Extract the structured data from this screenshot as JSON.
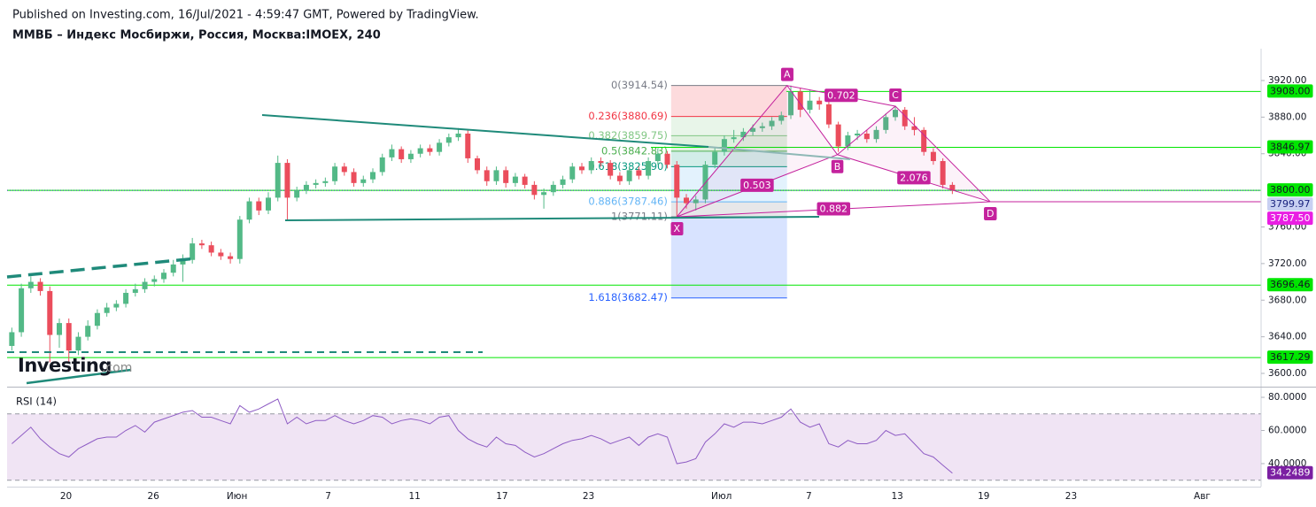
{
  "header": {
    "published": "Published on Investing.com, 16/Jul/2021 - 4:59:47 GMT, Powered by TradingView.",
    "symbol": "ММВБ – Индекс Мосбиржи, Россия, Москва:IMOEX, 240"
  },
  "logo": {
    "name": "Investing",
    "suffix": ".com"
  },
  "chart_data": [
    {
      "type": "candlestick",
      "up_color": "#53b987",
      "down_color": "#eb4d5c",
      "xlim": [
        -0.5,
        131.5
      ],
      "ylim": [
        3585.5,
        3954.8
      ],
      "yticks": [
        {
          "value": 3920,
          "label": "3920.00"
        },
        {
          "value": 3880,
          "label": "3880.00"
        },
        {
          "value": 3840,
          "label": "3840.00"
        },
        {
          "value": 3760,
          "label": "3760.00"
        },
        {
          "value": 3720,
          "label": "3720.00"
        },
        {
          "value": 3680,
          "label": "3680.00"
        },
        {
          "value": 3640,
          "label": "3640.00"
        },
        {
          "value": 3600,
          "label": "3600.00"
        }
      ],
      "xticks": [
        {
          "value": 5.7,
          "label": "20"
        },
        {
          "value": 14.9,
          "label": "26"
        },
        {
          "value": 23.7,
          "label": "Июн"
        },
        {
          "value": 33.3,
          "label": "7"
        },
        {
          "value": 42.4,
          "label": "11"
        },
        {
          "value": 51.6,
          "label": "17"
        },
        {
          "value": 60.7,
          "label": "23"
        },
        {
          "value": 74.7,
          "label": "Июл"
        },
        {
          "value": 83.9,
          "label": "7"
        },
        {
          "value": 93.2,
          "label": "13"
        },
        {
          "value": 102.3,
          "label": "19"
        },
        {
          "value": 111.5,
          "label": "23"
        },
        {
          "value": 125.3,
          "label": "Авг"
        }
      ],
      "open": [
        3630,
        3645,
        3693,
        3700,
        3690,
        3642,
        3655,
        3625,
        3640,
        3652,
        3666,
        3672,
        3676,
        3688,
        3692,
        3700,
        3703,
        3710,
        3719,
        3724,
        3742,
        3740,
        3732,
        3728,
        3725,
        3768,
        3788,
        3778,
        3792,
        3830,
        3792,
        3800,
        3806,
        3808,
        3810,
        3826,
        3820,
        3808,
        3812,
        3820,
        3836,
        3845,
        3834,
        3840,
        3846,
        3842,
        3852,
        3858,
        3862,
        3835,
        3822,
        3810,
        3822,
        3808,
        3815,
        3806,
        3795,
        3798,
        3806,
        3812,
        3826,
        3822,
        3832,
        3830,
        3816,
        3810,
        3822,
        3816,
        3832,
        3840,
        3828,
        3792,
        3786,
        3790,
        3828,
        3842,
        3856,
        3858,
        3864,
        3868,
        3870,
        3876,
        3882,
        3908,
        3888,
        3898,
        3894,
        3872,
        3848,
        3860,
        3862,
        3856,
        3866,
        3880,
        3888,
        3870,
        3866,
        3842,
        3832,
        3806
      ],
      "high": [
        3650,
        3698,
        3706,
        3704,
        3695,
        3660,
        3660,
        3645,
        3658,
        3670,
        3677,
        3680,
        3692,
        3698,
        3704,
        3707,
        3714,
        3724,
        3730,
        3748,
        3746,
        3744,
        3736,
        3732,
        3772,
        3792,
        3792,
        3798,
        3838,
        3834,
        3804,
        3810,
        3812,
        3814,
        3830,
        3830,
        3824,
        3816,
        3824,
        3840,
        3850,
        3848,
        3844,
        3850,
        3850,
        3856,
        3862,
        3868,
        3866,
        3838,
        3826,
        3826,
        3826,
        3819,
        3818,
        3810,
        3802,
        3810,
        3816,
        3830,
        3830,
        3836,
        3836,
        3833,
        3820,
        3826,
        3826,
        3836,
        3846,
        3843,
        3832,
        3796,
        3794,
        3832,
        3846,
        3860,
        3866,
        3868,
        3872,
        3874,
        3880,
        3886,
        3914.54,
        3912,
        3910,
        3902,
        3897,
        3875,
        3864,
        3866,
        3866,
        3870,
        3884,
        3892,
        3891,
        3880,
        3869,
        3846,
        3835,
        3809
      ],
      "low": [
        3625,
        3640,
        3688,
        3685,
        3612,
        3628,
        3612,
        3620,
        3636,
        3648,
        3662,
        3668,
        3672,
        3684,
        3688,
        3695,
        3699,
        3706,
        3700,
        3720,
        3736,
        3728,
        3724,
        3720,
        3720,
        3764,
        3773,
        3774,
        3788,
        3768,
        3788,
        3796,
        3802,
        3804,
        3806,
        3816,
        3804,
        3804,
        3808,
        3816,
        3832,
        3830,
        3830,
        3836,
        3838,
        3838,
        3848,
        3854,
        3830,
        3818,
        3805,
        3806,
        3803,
        3804,
        3802,
        3790,
        3780,
        3794,
        3802,
        3808,
        3818,
        3818,
        3826,
        3812,
        3806,
        3806,
        3812,
        3812,
        3828,
        3824,
        3771.11,
        3780,
        3778,
        3786,
        3824,
        3838,
        3852,
        3854,
        3860,
        3864,
        3866,
        3872,
        3878,
        3880,
        3884,
        3888,
        3868,
        3842,
        3844,
        3855,
        3852,
        3852,
        3862,
        3876,
        3866,
        3860,
        3838,
        3828,
        3802,
        3796
      ],
      "close": [
        3645,
        3693,
        3700,
        3690,
        3642,
        3655,
        3625,
        3640,
        3652,
        3666,
        3672,
        3676,
        3688,
        3692,
        3700,
        3703,
        3710,
        3719,
        3724,
        3742,
        3740,
        3732,
        3728,
        3725,
        3768,
        3788,
        3778,
        3792,
        3830,
        3792,
        3800,
        3806,
        3808,
        3810,
        3826,
        3820,
        3808,
        3812,
        3820,
        3836,
        3845,
        3834,
        3840,
        3846,
        3842,
        3852,
        3858,
        3862,
        3835,
        3822,
        3810,
        3822,
        3808,
        3815,
        3806,
        3795,
        3798,
        3806,
        3812,
        3826,
        3822,
        3832,
        3830,
        3816,
        3810,
        3822,
        3816,
        3832,
        3840,
        3828,
        3792,
        3786,
        3790,
        3828,
        3842,
        3856,
        3858,
        3864,
        3868,
        3870,
        3876,
        3882,
        3908,
        3888,
        3898,
        3894,
        3872,
        3848,
        3860,
        3862,
        3856,
        3866,
        3880,
        3888,
        3870,
        3866,
        3842,
        3832,
        3806,
        3799.97
      ],
      "level_color": "#00e600",
      "levels": [
        {
          "value": 3908,
          "label": "3908.00"
        },
        {
          "value": 3846.97,
          "label": "3846.97"
        },
        {
          "value": 3800,
          "label": "3800.00"
        },
        {
          "value": 3696.46,
          "label": "3696.46"
        },
        {
          "value": 3617.29,
          "label": "3617.29"
        }
      ],
      "last_color": "#2f3fb0",
      "fib": {
        "x": [
          69.4,
          81.6
        ],
        "levels": [
          {
            "value": 3914.54,
            "label": "0(3914.54)",
            "color": "#787b86"
          },
          {
            "value": 3880.69,
            "label": "0.236(3880.69)",
            "color": "#f23645"
          },
          {
            "value": 3859.75,
            "label": "0.382(3859.75)",
            "color": "#81c784"
          },
          {
            "value": 3842.83,
            "label": "0.5(3842.83)",
            "color": "#4caf50"
          },
          {
            "value": 3825.9,
            "label": "0.618(3825.90)",
            "color": "#089981"
          },
          {
            "value": 3787.46,
            "label": "0.886(3787.46)",
            "color": "#64b5f6"
          },
          {
            "value": 3771.11,
            "label": "1(3771.11)",
            "color": "#787b86"
          },
          {
            "value": 3682.47,
            "label": "1.618(3682.47)",
            "color": "#2962ff"
          }
        ]
      },
      "pattern": {
        "color": "#c4229d",
        "points": [
          {
            "label": "X",
            "x": 70,
            "y": 3771.11
          },
          {
            "label": "A",
            "x": 81.6,
            "y": 3914.54
          },
          {
            "label": "B",
            "x": 86.9,
            "y": 3839
          },
          {
            "label": "C",
            "x": 93,
            "y": 3892
          },
          {
            "label": "D",
            "x": 103,
            "y": 3787.5
          }
        ],
        "ratios": [
          0.503,
          0.702,
          2.076,
          0.882
        ]
      },
      "target": {
        "value": 3787.5,
        "label": "3787.50"
      }
    },
    {
      "type": "line",
      "title": "RSI (14)",
      "color": "#8e5cc4",
      "band_color": "#e9d8ef",
      "xlim": [
        -0.5,
        131.5
      ],
      "ylim": [
        26.1,
        85.9
      ],
      "band": [
        30,
        70
      ],
      "yticks": [
        {
          "value": 80,
          "label": "80.0000"
        },
        {
          "value": 60,
          "label": "60.0000"
        },
        {
          "value": 40,
          "label": "40.0000"
        }
      ],
      "values": [
        52,
        57,
        62,
        55,
        50,
        46,
        44,
        49,
        52,
        55,
        56,
        56,
        60,
        63,
        59,
        65,
        67,
        69,
        71,
        72,
        68,
        68,
        66,
        64,
        75,
        71,
        73,
        76,
        79,
        64,
        68,
        64,
        66,
        66,
        69,
        66,
        64,
        66,
        69,
        68,
        64,
        66,
        67,
        66,
        64,
        68,
        69,
        60,
        55,
        52,
        50,
        56,
        52,
        51,
        47,
        44,
        46,
        49,
        52,
        54,
        55,
        57,
        55,
        52,
        54,
        56,
        51,
        56,
        58,
        56,
        40,
        41,
        43,
        53,
        58,
        64,
        62,
        65,
        65,
        64,
        66,
        68,
        73,
        65,
        62,
        64,
        52,
        50,
        54,
        52,
        52,
        54,
        60,
        57,
        58,
        52,
        46,
        44,
        39,
        34.2489
      ],
      "last_color": "#7b1fa2"
    }
  ]
}
